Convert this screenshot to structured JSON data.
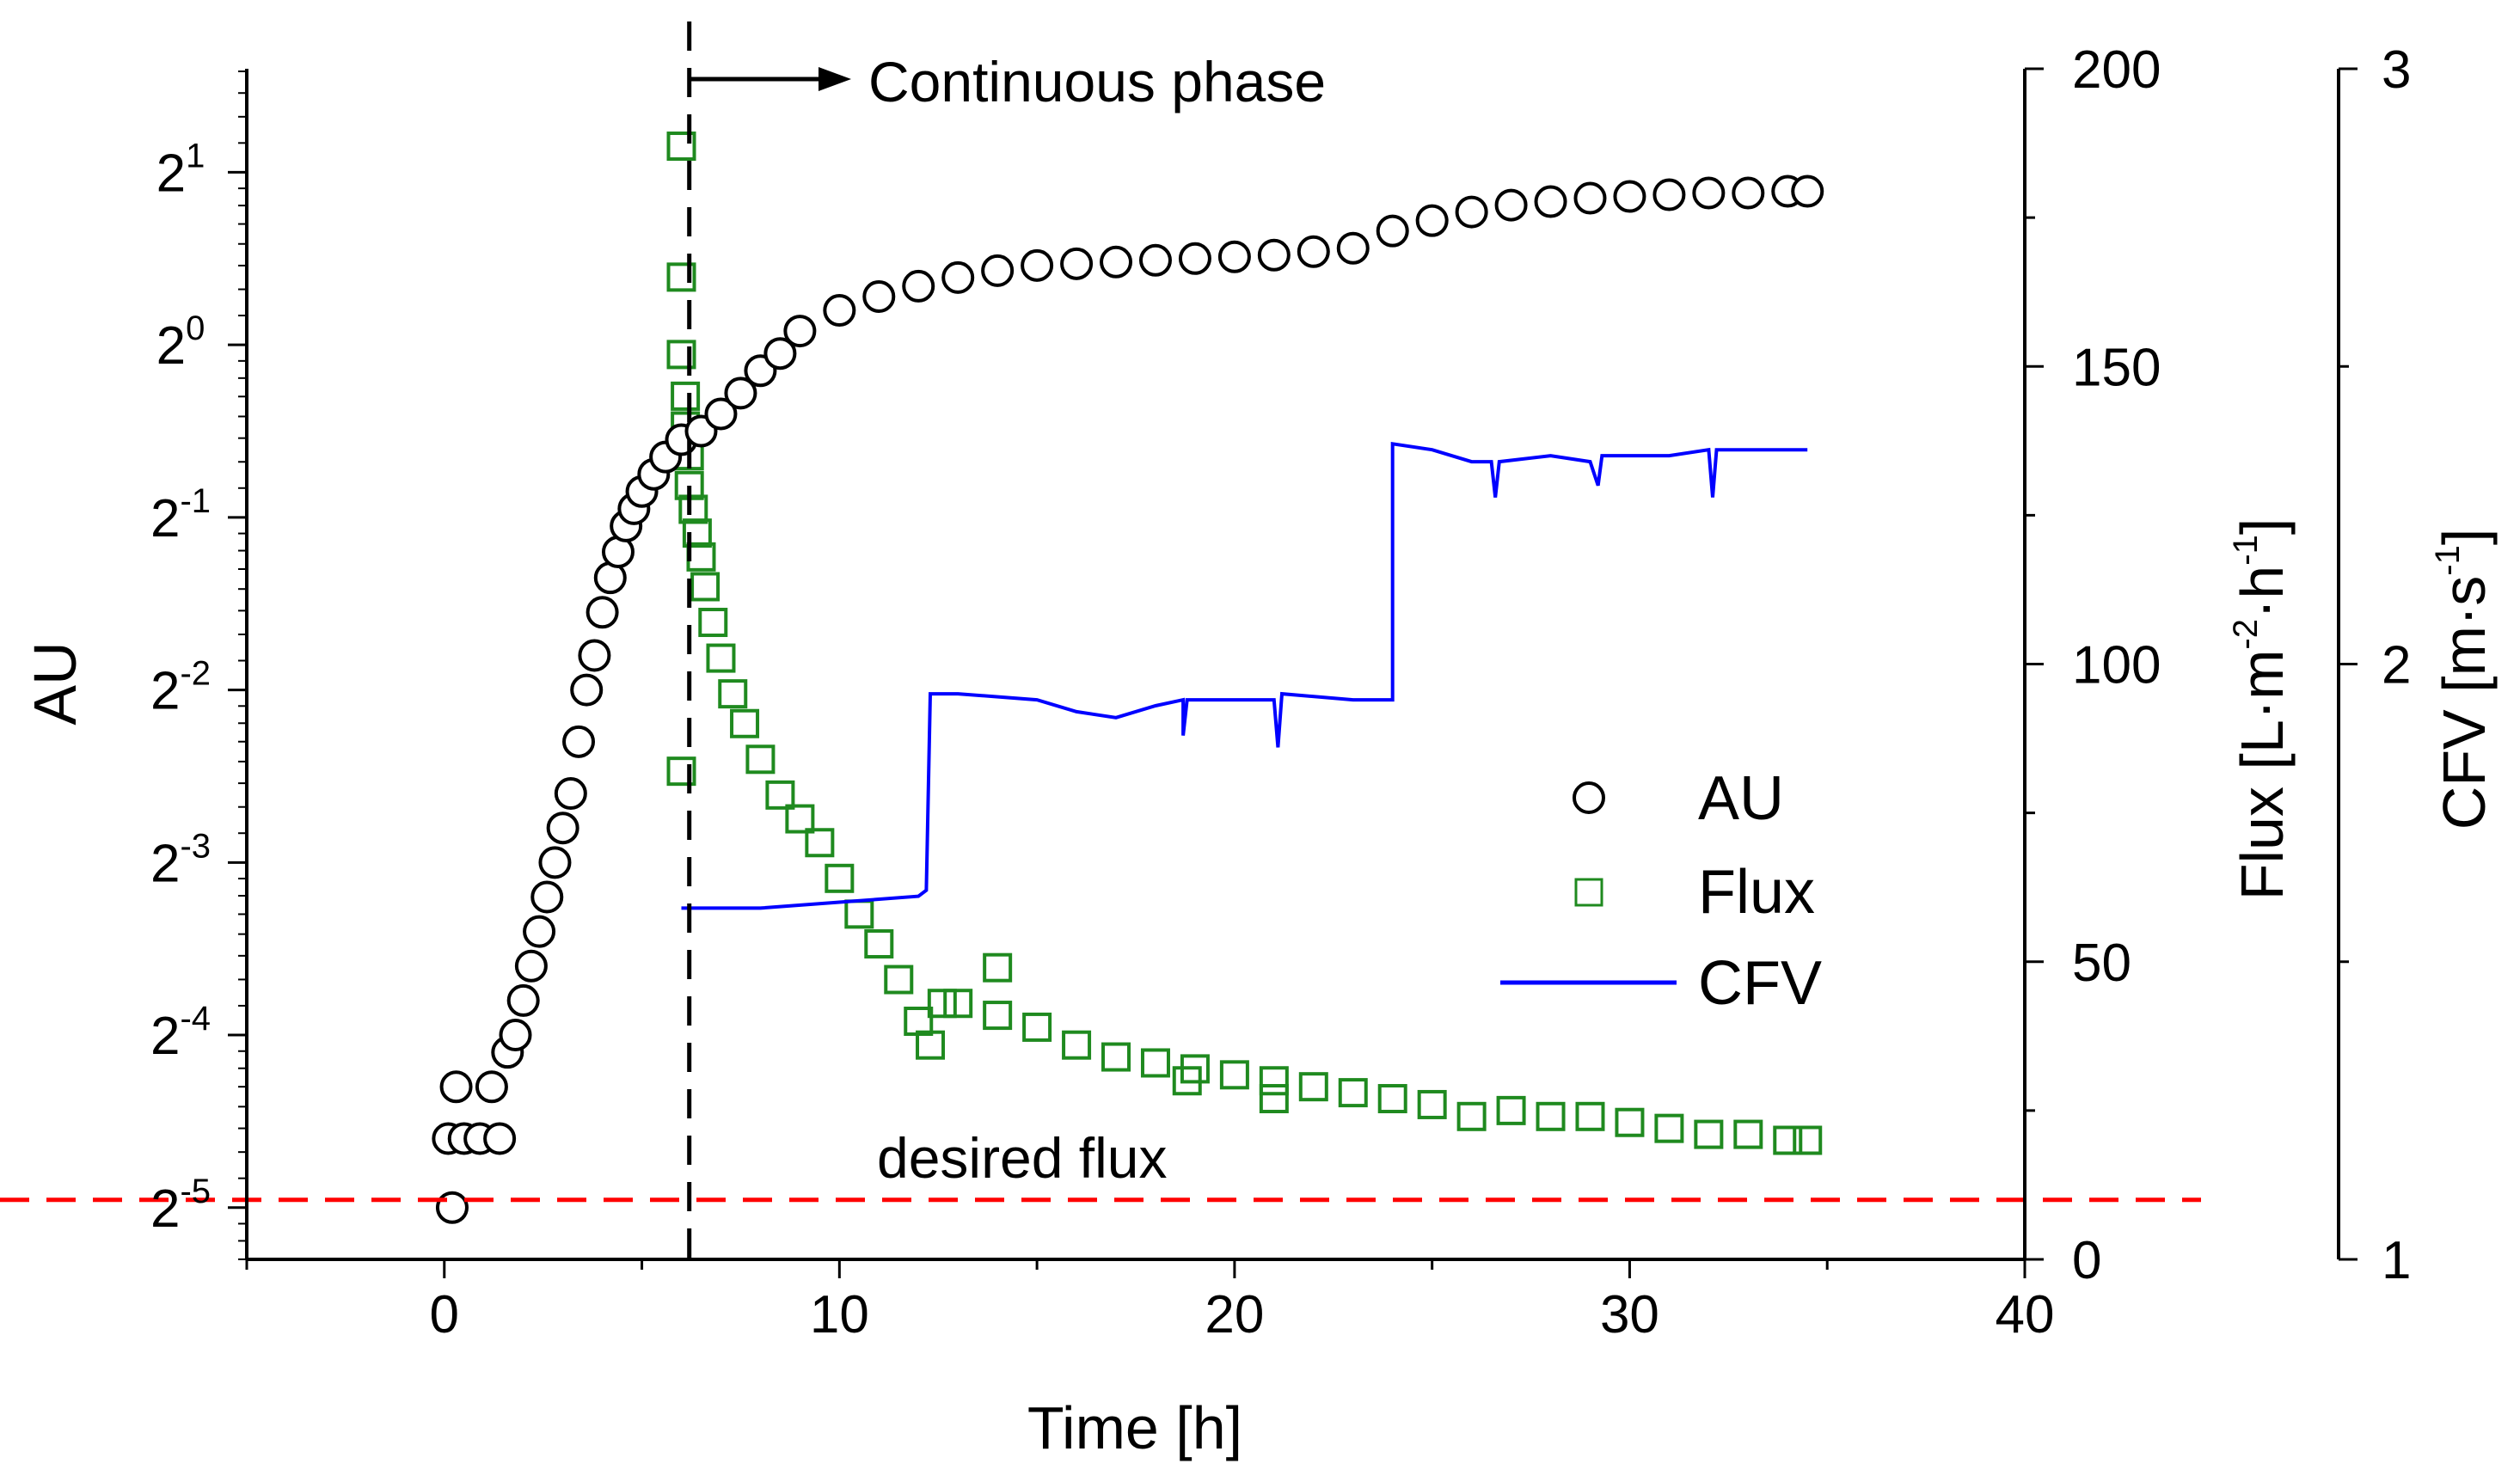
{
  "chart_data": {
    "type": "scatter",
    "x_axis": {
      "label": "Time [h]",
      "range": [
        -5,
        40
      ],
      "ticks": [
        0,
        10,
        20,
        30,
        40
      ]
    },
    "y_axis_left": {
      "label": "AU",
      "scale": "log2",
      "range_exp": [
        -5.3,
        1.6
      ],
      "ticks": [
        {
          "base": "2",
          "exp": "1",
          "value": 2
        },
        {
          "base": "2",
          "exp": "0",
          "value": 1
        },
        {
          "base": "2",
          "exp": "-1",
          "value": 0.5
        },
        {
          "base": "2",
          "exp": "-2",
          "value": 0.25
        },
        {
          "base": "2",
          "exp": "-3",
          "value": 0.125
        },
        {
          "base": "2",
          "exp": "-4",
          "value": 0.0625
        },
        {
          "base": "2",
          "exp": "-5",
          "value": 0.03125
        }
      ]
    },
    "y_axis_right_flux": {
      "label_main": "Flux [L·m",
      "label_sup1": "-2",
      "label_mid": "·h",
      "label_sup2": "-1",
      "label_end": "]",
      "range": [
        0,
        200
      ],
      "ticks": [
        0,
        50,
        100,
        150,
        200
      ]
    },
    "y_axis_right_cfv": {
      "label_main": "CFV [m·s",
      "label_sup": "-1",
      "label_end": "]",
      "range": [
        1,
        3
      ],
      "ticks": [
        1,
        2,
        3
      ]
    },
    "legend": [
      {
        "name": "AU",
        "marker": "circle",
        "color": "#000000"
      },
      {
        "name": "Flux",
        "marker": "square",
        "color": "#1f8a1f"
      },
      {
        "name": "CFV",
        "marker": "line",
        "color": "#0000ff"
      }
    ],
    "annotations": {
      "phase_label": "Continuous phase",
      "phase_start_time": 6.2,
      "desired_flux_label": "desired flux",
      "desired_flux_value": 10
    },
    "series": [
      {
        "name": "AU",
        "axis": "left",
        "points_exp": [
          [
            0.2,
            -5.0
          ],
          [
            0.3,
            -4.3
          ],
          [
            0.1,
            -4.6
          ],
          [
            0.5,
            -4.6
          ],
          [
            0.9,
            -4.6
          ],
          [
            1.2,
            -4.3
          ],
          [
            1.4,
            -4.6
          ],
          [
            1.6,
            -4.1
          ],
          [
            1.8,
            -4.0
          ],
          [
            2.0,
            -3.8
          ],
          [
            2.2,
            -3.6
          ],
          [
            2.4,
            -3.4
          ],
          [
            2.6,
            -3.2
          ],
          [
            2.8,
            -3.0
          ],
          [
            3.0,
            -2.8
          ],
          [
            3.2,
            -2.6
          ],
          [
            3.4,
            -2.3
          ],
          [
            3.6,
            -2.0
          ],
          [
            3.8,
            -1.8
          ],
          [
            4.0,
            -1.55
          ],
          [
            4.2,
            -1.35
          ],
          [
            4.4,
            -1.2
          ],
          [
            4.6,
            -1.05
          ],
          [
            4.8,
            -0.95
          ],
          [
            5.0,
            -0.85
          ],
          [
            5.3,
            -0.75
          ],
          [
            5.6,
            -0.65
          ],
          [
            6.0,
            -0.55
          ],
          [
            6.5,
            -0.5
          ],
          [
            7.0,
            -0.4
          ],
          [
            7.5,
            -0.28
          ],
          [
            8.0,
            -0.15
          ],
          [
            8.5,
            -0.05
          ],
          [
            9.0,
            0.08
          ],
          [
            10.0,
            0.2
          ],
          [
            11.0,
            0.28
          ],
          [
            12.0,
            0.34
          ],
          [
            13.0,
            0.39
          ],
          [
            14.0,
            0.43
          ],
          [
            15.0,
            0.46
          ],
          [
            16.0,
            0.47
          ],
          [
            17.0,
            0.48
          ],
          [
            18.0,
            0.49
          ],
          [
            19.0,
            0.5
          ],
          [
            20.0,
            0.51
          ],
          [
            21.0,
            0.52
          ],
          [
            22.0,
            0.54
          ],
          [
            23.0,
            0.56
          ],
          [
            24.0,
            0.66
          ],
          [
            25.0,
            0.72
          ],
          [
            26.0,
            0.77
          ],
          [
            27.0,
            0.81
          ],
          [
            28.0,
            0.83
          ],
          [
            29.0,
            0.85
          ],
          [
            30.0,
            0.86
          ],
          [
            31.0,
            0.87
          ],
          [
            32.0,
            0.88
          ],
          [
            33.0,
            0.88
          ],
          [
            34.0,
            0.89
          ],
          [
            34.5,
            0.89
          ]
        ]
      },
      {
        "name": "Flux",
        "axis": "flux",
        "points": [
          [
            6.0,
            187
          ],
          [
            6.0,
            165
          ],
          [
            6.0,
            152
          ],
          [
            6.1,
            145
          ],
          [
            6.1,
            140
          ],
          [
            6.2,
            135
          ],
          [
            6.2,
            130
          ],
          [
            6.3,
            126
          ],
          [
            6.4,
            122
          ],
          [
            6.5,
            118
          ],
          [
            6.6,
            113
          ],
          [
            6.8,
            107
          ],
          [
            7.0,
            101
          ],
          [
            7.3,
            95
          ],
          [
            7.6,
            90
          ],
          [
            8.0,
            84
          ],
          [
            8.5,
            78
          ],
          [
            9.0,
            74
          ],
          [
            9.5,
            70
          ],
          [
            10.0,
            64
          ],
          [
            10.5,
            58
          ],
          [
            11.0,
            53
          ],
          [
            11.5,
            47
          ],
          [
            12.0,
            40
          ],
          [
            12.3,
            36
          ],
          [
            12.6,
            43
          ],
          [
            13.0,
            43
          ],
          [
            14.0,
            41
          ],
          [
            15.0,
            39
          ],
          [
            16.0,
            36
          ],
          [
            17.0,
            34
          ],
          [
            18.0,
            33
          ],
          [
            19.0,
            32
          ],
          [
            20.0,
            31
          ],
          [
            21.0,
            30
          ],
          [
            22.0,
            29
          ],
          [
            23.0,
            28
          ],
          [
            24.0,
            27
          ],
          [
            25.0,
            26
          ],
          [
            26.0,
            24
          ],
          [
            27.0,
            25
          ],
          [
            28.0,
            24
          ],
          [
            29.0,
            24
          ],
          [
            30.0,
            23
          ],
          [
            31.0,
            22
          ],
          [
            32.0,
            21
          ],
          [
            33.0,
            21
          ],
          [
            34.0,
            20
          ],
          [
            34.5,
            20
          ]
        ],
        "outliers": [
          [
            6.0,
            82
          ],
          [
            14.0,
            49
          ],
          [
            18.8,
            30
          ],
          [
            21.0,
            27
          ]
        ]
      },
      {
        "name": "CFV",
        "axis": "cfv",
        "points": [
          [
            6.0,
            1.59
          ],
          [
            8.0,
            1.59
          ],
          [
            10.0,
            1.6
          ],
          [
            12.0,
            1.61
          ],
          [
            12.2,
            1.62
          ],
          [
            12.3,
            1.95
          ],
          [
            13.0,
            1.95
          ],
          [
            15.0,
            1.94
          ],
          [
            16.0,
            1.92
          ],
          [
            17.0,
            1.91
          ],
          [
            18.0,
            1.93
          ],
          [
            18.7,
            1.94
          ],
          [
            18.7,
            1.88
          ],
          [
            18.8,
            1.94
          ],
          [
            20.0,
            1.94
          ],
          [
            21.0,
            1.94
          ],
          [
            21.1,
            1.86
          ],
          [
            21.2,
            1.95
          ],
          [
            23.0,
            1.94
          ],
          [
            24.0,
            1.94
          ],
          [
            24.0,
            2.37
          ],
          [
            25.0,
            2.36
          ],
          [
            26.0,
            2.34
          ],
          [
            26.5,
            2.34
          ],
          [
            26.6,
            2.28
          ],
          [
            26.7,
            2.34
          ],
          [
            28.0,
            2.35
          ],
          [
            29.0,
            2.34
          ],
          [
            29.2,
            2.3
          ],
          [
            29.3,
            2.35
          ],
          [
            31.0,
            2.35
          ],
          [
            32.0,
            2.36
          ],
          [
            32.1,
            2.28
          ],
          [
            32.2,
            2.36
          ],
          [
            34.5,
            2.36
          ]
        ]
      }
    ]
  }
}
